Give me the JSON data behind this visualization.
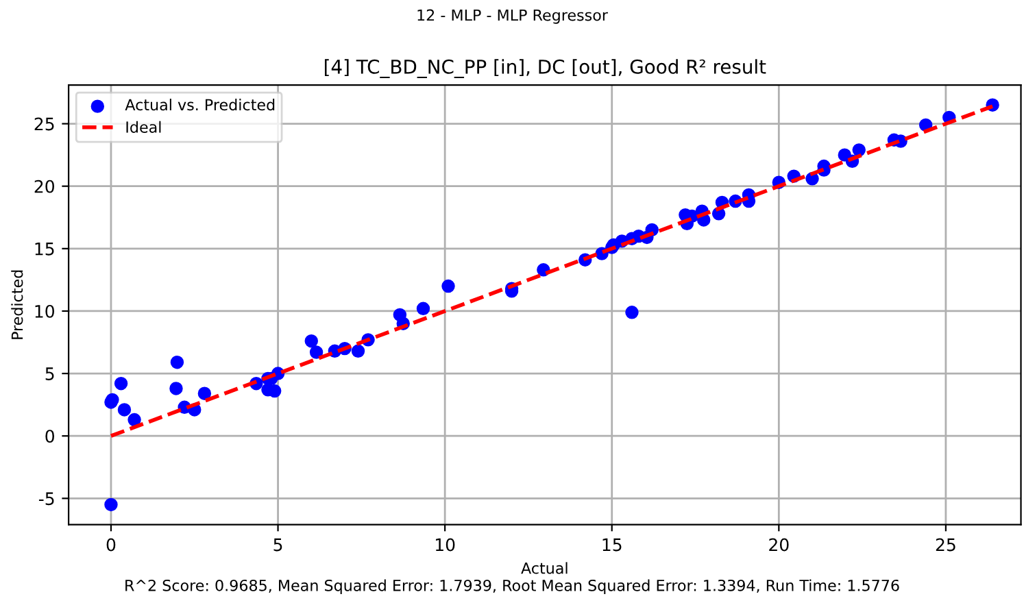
{
  "chart_data": {
    "type": "scatter",
    "title": "[4] TC_BD_NC_PP [in], DC [out], Good R² result",
    "subtitle": "12 - MLP - MLP Regressor",
    "xlabel": "Actual",
    "ylabel": "Predicted",
    "annotations": [
      "R^2 Score: 0.9685, Mean Squared Error: 1.7939, Root Mean Squared Error: 1.3394, Run Time: 1.5776"
    ],
    "series": [
      {
        "name": "Actual vs. Predicted",
        "color": "#0000ff",
        "marker": "circle",
        "x": [
          0,
          0.04,
          0.3,
          0.4,
          0.7,
          0,
          1.98,
          1.95,
          2.2,
          2.5,
          2.8,
          4.35,
          4.7,
          4.7,
          4.9,
          4.8,
          5.0,
          6.0,
          6.15,
          6.7,
          7.0,
          7.4,
          7.7,
          8.65,
          8.75,
          9.35,
          10.1,
          12.0,
          12.0,
          12.95,
          14.2,
          14.7,
          15.0,
          15.05,
          15.3,
          15.6,
          15.6,
          15.8,
          16.05,
          16.2,
          17.2,
          17.25,
          17.4,
          17.7,
          17.75,
          18.2,
          18.3,
          18.7,
          19.1,
          19.1,
          20.0,
          20.45,
          21.0,
          21.35,
          21.35,
          21.97,
          22.2,
          22.4,
          23.45,
          23.65,
          24.4,
          25.1,
          26.4
        ],
        "values": [
          2.7,
          2.9,
          4.2,
          2.1,
          1.3,
          -5.5,
          5.9,
          3.8,
          2.3,
          2.1,
          3.4,
          4.2,
          4.6,
          3.7,
          3.6,
          4.6,
          5.0,
          7.6,
          6.7,
          6.8,
          7.0,
          6.8,
          7.7,
          9.7,
          9.0,
          10.2,
          12.0,
          11.8,
          11.6,
          13.3,
          14.1,
          14.6,
          15.1,
          15.3,
          15.6,
          15.8,
          9.9,
          16.0,
          15.9,
          16.5,
          17.7,
          17.0,
          17.6,
          18.0,
          17.3,
          17.8,
          18.7,
          18.8,
          18.8,
          19.3,
          20.3,
          20.8,
          20.6,
          21.6,
          21.3,
          22.5,
          22.0,
          22.9,
          23.7,
          23.6,
          24.9,
          25.5,
          26.5
        ]
      },
      {
        "name": "Ideal",
        "type": "line",
        "color": "#ff0000",
        "line_style": "dashed",
        "x": [
          0,
          26.4
        ],
        "values": [
          0,
          26.4
        ]
      }
    ],
    "xlim": [
      -1.27,
      27.25
    ],
    "ylim": [
      -7.1,
      28.1
    ],
    "xticks": [
      0,
      5,
      10,
      15,
      20,
      25
    ],
    "yticks": [
      -5,
      0,
      5,
      10,
      15,
      20,
      25
    ],
    "grid": true,
    "legend": "top left"
  }
}
